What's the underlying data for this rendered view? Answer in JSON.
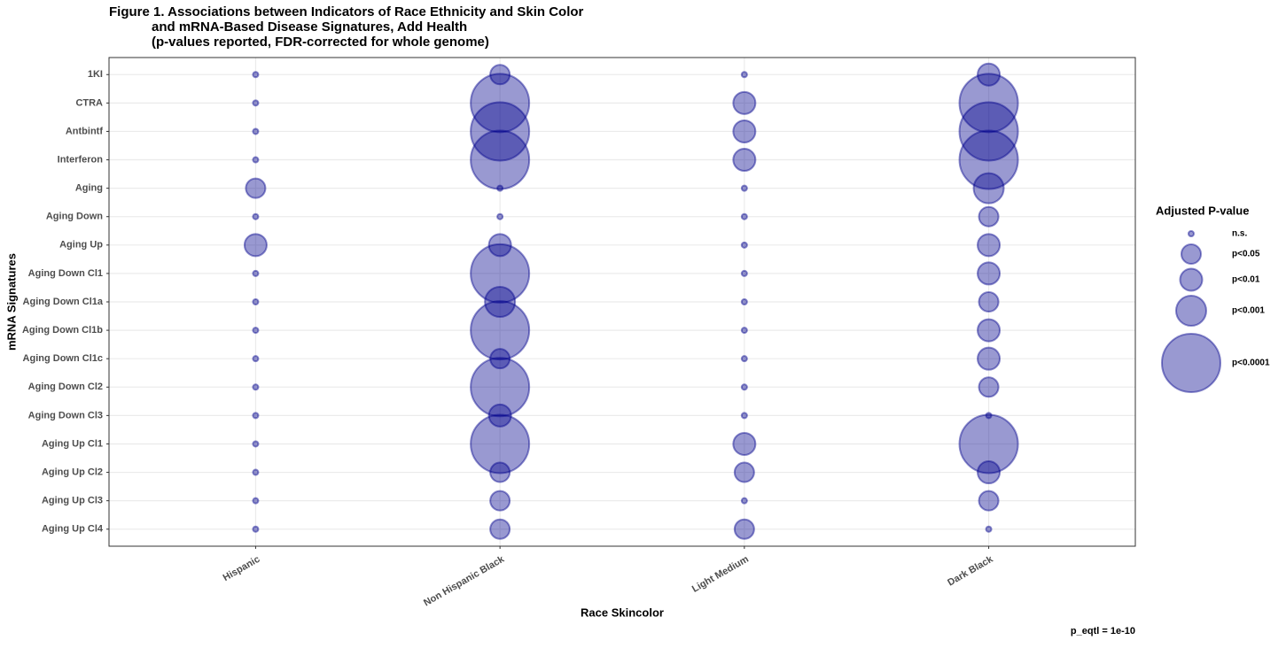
{
  "chart_data": {
    "type": "bubble",
    "title": [
      "Figure 1. Associations between Indicators of Race Ethnicity and Skin Color",
      "and mRNA-Based Disease Signatures, Add Health",
      "(p-values reported, FDR-corrected for whole genome)"
    ],
    "x_label": "Race Skincolor",
    "y_label": "mRNA Signatures",
    "x_categories": [
      "Hispanic",
      "Non Hispanic Black",
      "Light Medium",
      "Dark Black"
    ],
    "y_categories": [
      "1KI",
      "CTRA",
      "Antbintf",
      "Interferon",
      "Aging",
      "Aging Down",
      "Aging Up",
      "Aging Down Cl1",
      "Aging Down Cl1a",
      "Aging Down Cl1b",
      "Aging Down Cl1c",
      "Aging Down Cl2",
      "Aging Down Cl3",
      "Aging Up Cl1",
      "Aging Up Cl2",
      "Aging Up Cl3",
      "Aging Up Cl4"
    ],
    "values": [
      [
        "n.s.",
        "n.s.",
        "n.s.",
        "n.s.",
        "p<0.05",
        "n.s.",
        "p<0.01",
        "n.s.",
        "n.s.",
        "n.s.",
        "n.s.",
        "n.s.",
        "n.s.",
        "n.s.",
        "n.s.",
        "n.s.",
        "n.s."
      ],
      [
        "p<0.05",
        "p<0.0001",
        "p<0.0001",
        "p<0.0001",
        "n.s.",
        "n.s.",
        "p<0.01",
        "p<0.0001",
        "p<0.001",
        "p<0.0001",
        "p<0.05",
        "p<0.0001",
        "p<0.01",
        "p<0.0001",
        "p<0.05",
        "p<0.05",
        "p<0.05"
      ],
      [
        "n.s.",
        "p<0.01",
        "p<0.01",
        "p<0.01",
        "n.s.",
        "n.s.",
        "n.s.",
        "n.s.",
        "n.s.",
        "n.s.",
        "n.s.",
        "n.s.",
        "n.s.",
        "p<0.01",
        "p<0.05",
        "n.s.",
        "p<0.05"
      ],
      [
        "p<0.01",
        "p<0.0001",
        "p<0.0001",
        "p<0.0001",
        "p<0.001",
        "p<0.05",
        "p<0.01",
        "p<0.01",
        "p<0.05",
        "p<0.01",
        "p<0.01",
        "p<0.05",
        "n.s.",
        "p<0.0001",
        "p<0.01",
        "p<0.05",
        "n.s."
      ]
    ],
    "size_legend": {
      "title": "Adjusted P-value",
      "levels": [
        "n.s.",
        "p<0.05",
        "p<0.01",
        "p<0.001",
        "p<0.0001"
      ]
    },
    "color": "#00008b",
    "grid": true,
    "caption": "p_eqtl =  1e-10"
  }
}
